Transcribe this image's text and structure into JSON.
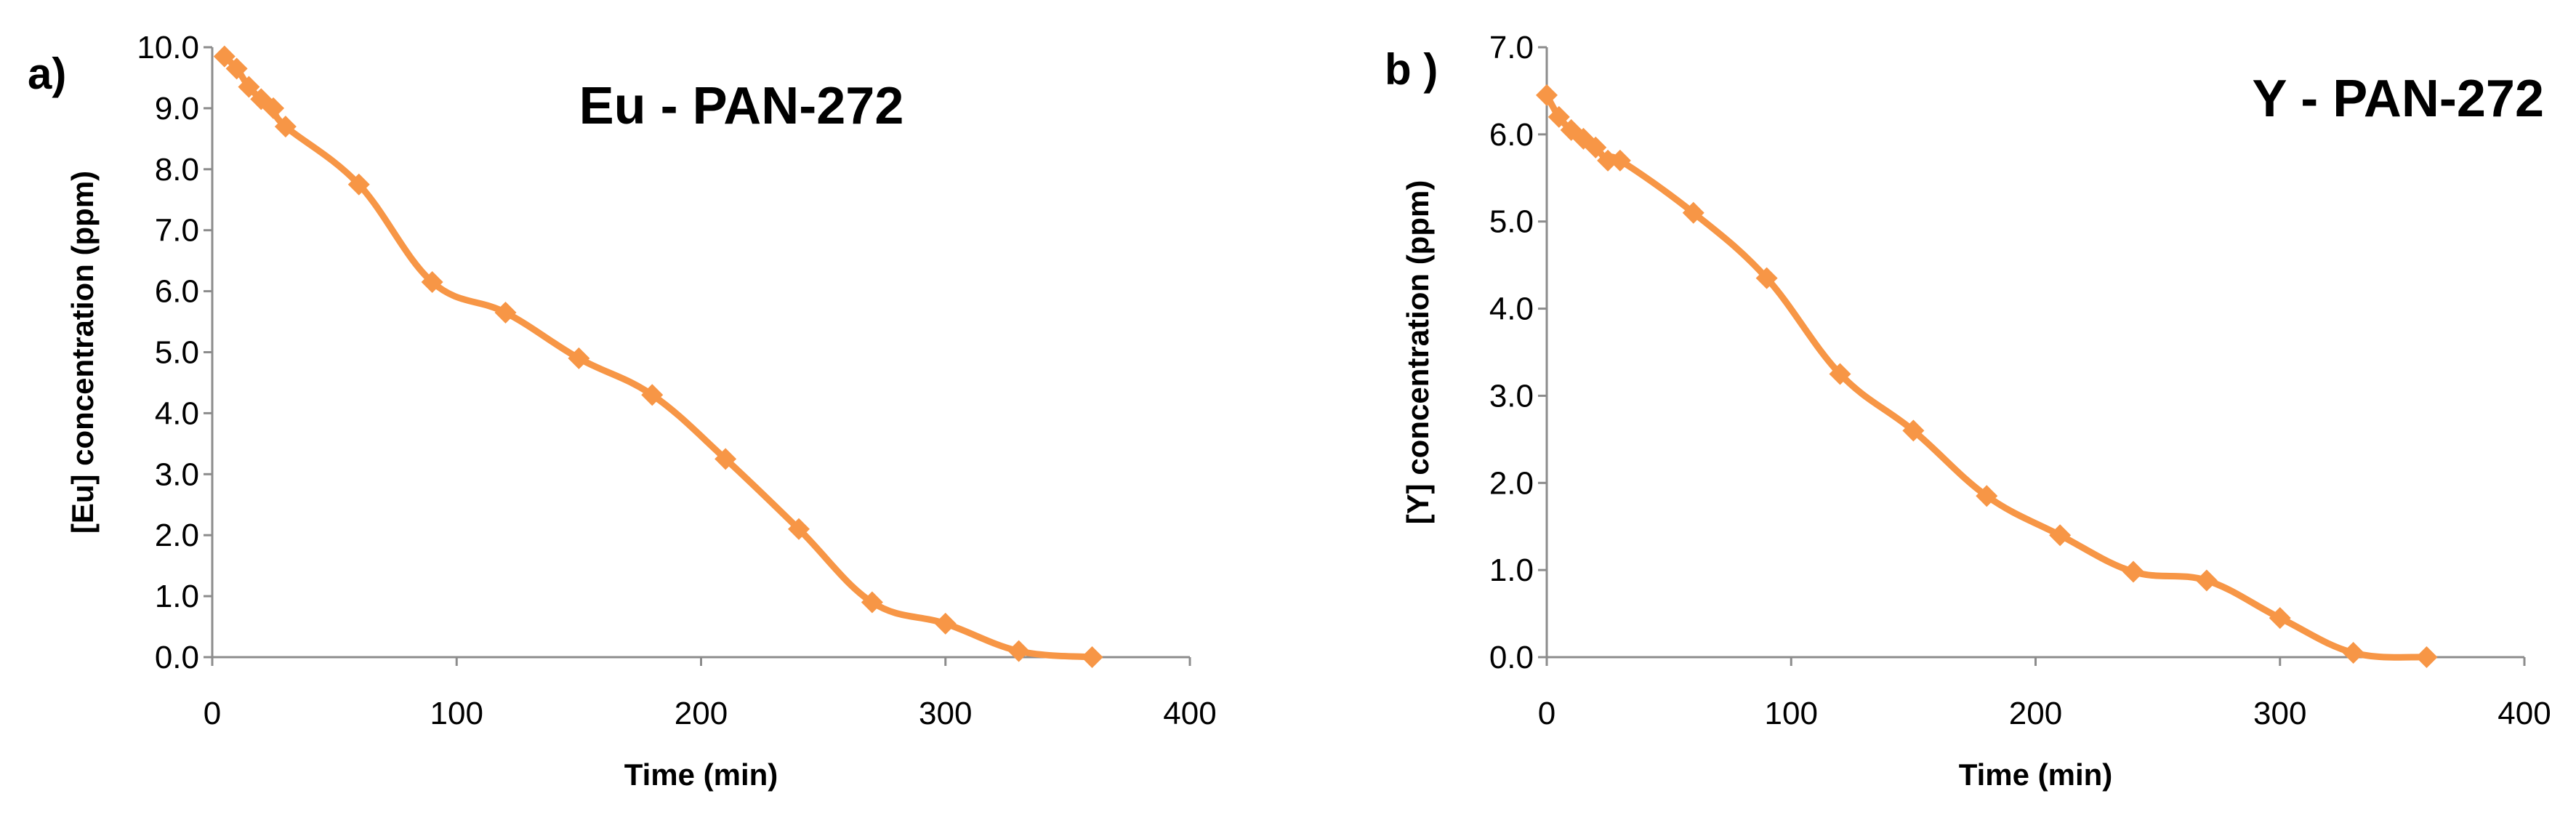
{
  "chart_data": [
    {
      "type": "line",
      "panel_label": "a)",
      "title": "Eu - PAN-272",
      "xlabel": "Time (min)",
      "ylabel": "[Eu] concentration (ppm)",
      "xlim": [
        0,
        400
      ],
      "ylim": [
        0,
        10
      ],
      "x_ticks": [
        0,
        100,
        200,
        300,
        400
      ],
      "x_tick_labels": [
        "0",
        "100",
        "200",
        "300",
        "400"
      ],
      "y_ticks": [
        0,
        1,
        2,
        3,
        4,
        5,
        6,
        7,
        8,
        9,
        10
      ],
      "y_tick_labels": [
        "0.0",
        "1.0",
        "2.0",
        "3.0",
        "4.0",
        "5.0",
        "6.0",
        "7.0",
        "8.0",
        "9.0",
        "10.0"
      ],
      "grid": false,
      "series": [
        {
          "name": "Eu",
          "color": "#f79646",
          "marker": "diamond",
          "x": [
            5,
            10,
            15,
            20,
            25,
            30,
            60,
            90,
            120,
            150,
            180,
            210,
            240,
            270,
            300,
            330,
            360
          ],
          "y": [
            9.85,
            9.65,
            9.35,
            9.15,
            9.0,
            8.7,
            7.75,
            6.15,
            5.65,
            4.9,
            4.3,
            3.25,
            2.1,
            0.9,
            0.55,
            0.1,
            0.0
          ]
        }
      ]
    },
    {
      "type": "line",
      "panel_label": "b )",
      "title": "Y - PAN-272",
      "xlabel": "Time (min)",
      "ylabel": "[Y] concentration (ppm)",
      "xlim": [
        0,
        400
      ],
      "ylim": [
        0,
        7
      ],
      "x_ticks": [
        0,
        100,
        200,
        300,
        400
      ],
      "x_tick_labels": [
        "0",
        "100",
        "200",
        "300",
        "400"
      ],
      "y_ticks": [
        0,
        1,
        2,
        3,
        4,
        5,
        6,
        7
      ],
      "y_tick_labels": [
        "0.0",
        "1.0",
        "2.0",
        "3.0",
        "4.0",
        "5.0",
        "6.0",
        "7.0"
      ],
      "grid": false,
      "series": [
        {
          "name": "Y",
          "color": "#f79646",
          "marker": "diamond",
          "x": [
            0,
            5,
            10,
            15,
            20,
            25,
            30,
            60,
            90,
            120,
            150,
            180,
            210,
            240,
            270,
            300,
            330,
            360
          ],
          "y": [
            6.45,
            6.2,
            6.05,
            5.95,
            5.85,
            5.7,
            5.7,
            5.1,
            4.35,
            3.25,
            2.6,
            1.85,
            1.4,
            0.98,
            0.88,
            0.45,
            0.05,
            0.0
          ]
        }
      ]
    }
  ]
}
